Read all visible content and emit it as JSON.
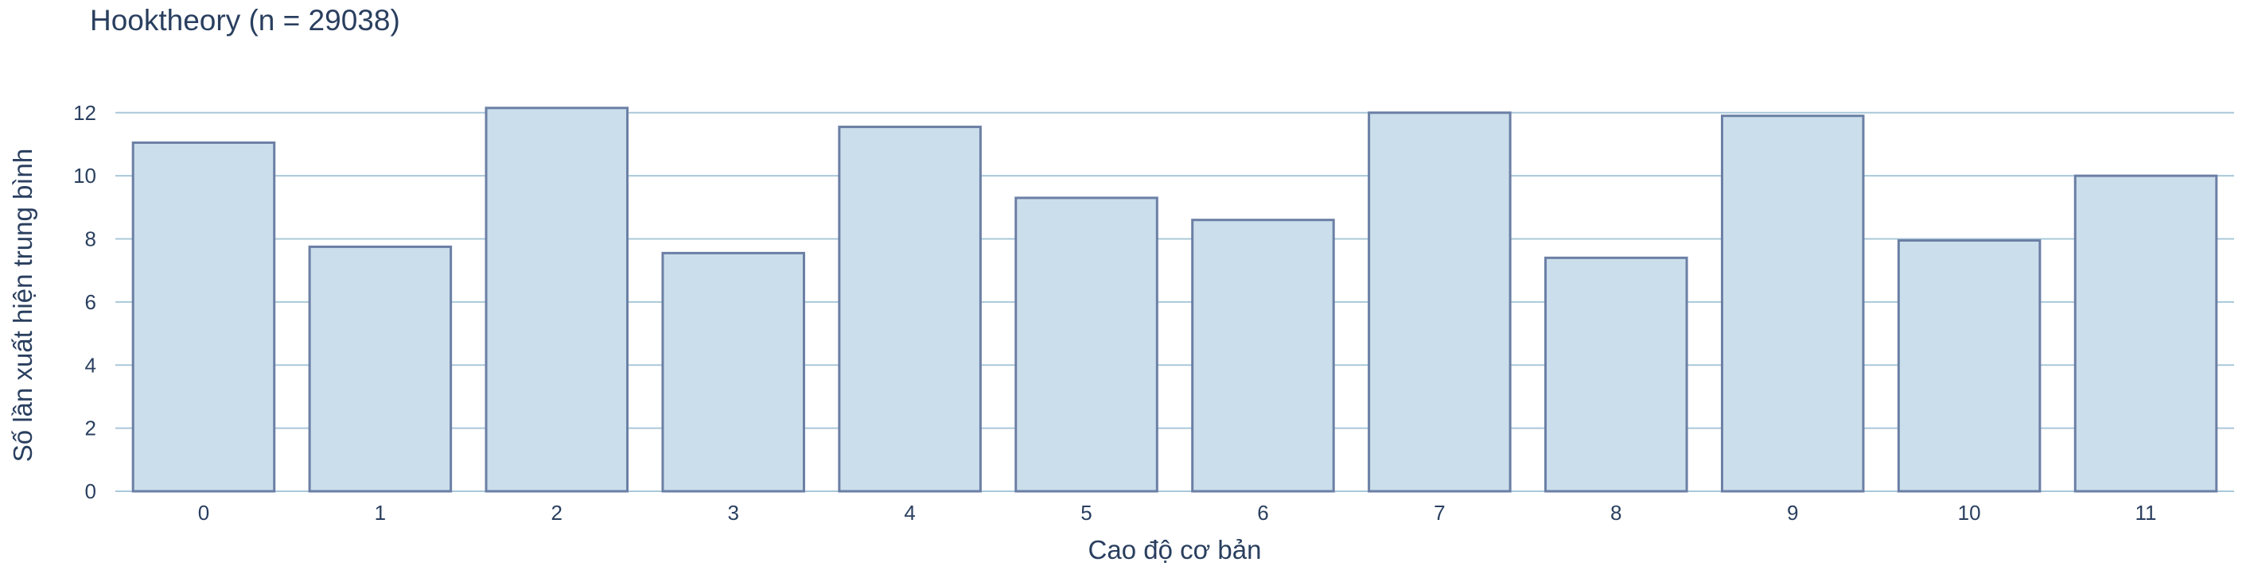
{
  "chart_data": {
    "type": "bar",
    "title": "Hooktheory (n = 29038)",
    "xlabel": "Cao độ cơ bản",
    "ylabel": "Số lần xuất hiện trung bình",
    "categories": [
      "0",
      "1",
      "2",
      "3",
      "4",
      "5",
      "6",
      "7",
      "8",
      "9",
      "10",
      "11"
    ],
    "values": [
      11.05,
      7.75,
      12.15,
      7.55,
      11.55,
      9.3,
      8.6,
      12.0,
      7.4,
      11.9,
      7.95,
      10.0
    ],
    "ylim": [
      0,
      12.8
    ],
    "yticks": [
      0,
      2,
      4,
      6,
      8,
      10,
      12
    ],
    "grid": true,
    "colors": {
      "bar_fill": "#cbdeeb",
      "bar_stroke": "#6b7fa5",
      "grid": "#a9c8da",
      "text": "#2a3f5f"
    }
  }
}
